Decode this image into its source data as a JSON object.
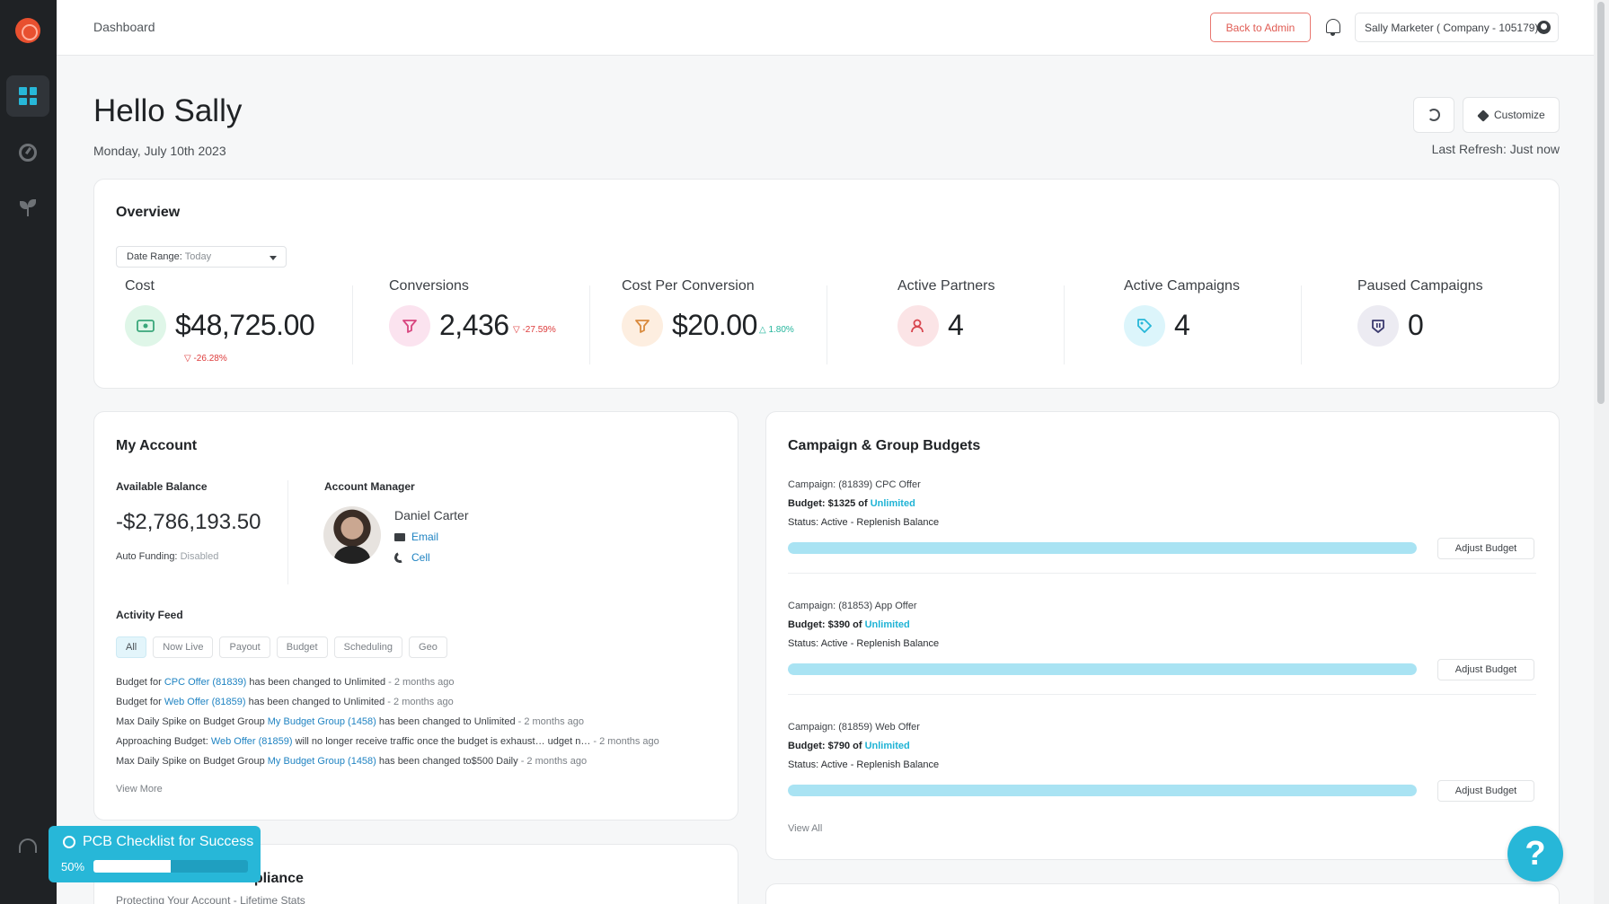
{
  "topbar": {
    "breadcrumb": "Dashboard",
    "back_to_admin": "Back to Admin",
    "user_label": "Sally Marketer ( Company - 105179)"
  },
  "header": {
    "greeting": "Hello Sally",
    "date": "Monday, July 10th 2023",
    "customize": "Customize",
    "last_refresh": "Last Refresh: Just now"
  },
  "overview": {
    "title": "Overview",
    "date_range_label": "Date Range:",
    "date_range_value": "Today",
    "stats": [
      {
        "label": "Cost",
        "value": "$48,725.00",
        "delta": "-26.28%",
        "trend": "down",
        "icon": "cash-icon",
        "icon_color": "#dff6e8"
      },
      {
        "label": "Conversions",
        "value": "2,436",
        "delta": "-27.59%",
        "trend": "down",
        "icon": "funnel-icon",
        "icon_color": "#fbe3ef"
      },
      {
        "label": "Cost Per Conversion",
        "value": "$20.00",
        "delta": "1.80%",
        "trend": "up",
        "icon": "funnel-dollar-icon",
        "icon_color": "#fdeee0"
      },
      {
        "label": "Active Partners",
        "value": "4",
        "icon": "partner-icon",
        "icon_color": "#fbe4e6"
      },
      {
        "label": "Active Campaigns",
        "value": "4",
        "icon": "tag-icon",
        "icon_color": "#dcf5fb"
      },
      {
        "label": "Paused Campaigns",
        "value": "0",
        "icon": "pause-tag-icon",
        "icon_color": "#ecebf2"
      }
    ]
  },
  "account": {
    "title": "My Account",
    "balance_label": "Available Balance",
    "balance": "-$2,786,193.50",
    "auto_funding_label": "Auto Funding:",
    "auto_funding_value": "Disabled",
    "manager_label": "Account Manager",
    "manager_name": "Daniel Carter",
    "email": "Email",
    "cell": "Cell",
    "activity_title": "Activity Feed",
    "filters": [
      "All",
      "Now Live",
      "Payout",
      "Budget",
      "Scheduling",
      "Geo"
    ],
    "feed": [
      {
        "pre": "Budget for ",
        "link": "CPC Offer (81839)",
        "post": " has been changed to  Unlimited",
        "ago": " - 2 months ago"
      },
      {
        "pre": "Budget for ",
        "link": "Web Offer (81859)",
        "post": " has been changed to  Unlimited",
        "ago": " - 2 months ago"
      },
      {
        "pre": "Max Daily Spike on Budget Group ",
        "link": "My Budget Group (1458)",
        "post": " has been changed to  Unlimited",
        "ago": " - 2 months ago"
      },
      {
        "pre": "Approaching Budget: ",
        "link": "Web Offer (81859)",
        "post": " will no longer receive traffic once the budget is exhaust… udget n…",
        "ago": " - 2 months ago"
      },
      {
        "pre": "Max Daily Spike on Budget Group ",
        "link": "My Budget Group (1458)",
        "post": " has been changed to$500 Daily",
        "ago": " - 2 months ago"
      }
    ],
    "view_more": "View More"
  },
  "budgets": {
    "title": "Campaign & Group Budgets",
    "items": [
      {
        "campaign": "Campaign: (81839) CPC Offer",
        "budget_prefix": "Budget: $1325 of ",
        "budget_limit": "Unlimited",
        "status": "Status: Active - Replenish Balance",
        "progress": 1.0,
        "adjust": "Adjust Budget"
      },
      {
        "campaign": "Campaign: (81853) App Offer",
        "budget_prefix": "Budget: $390 of ",
        "budget_limit": "Unlimited",
        "status": "Status: Active - Replenish Balance",
        "progress": 1.0,
        "adjust": "Adjust Budget"
      },
      {
        "campaign": "Campaign: (81859) Web Offer",
        "budget_prefix": "Budget: $790 of ",
        "budget_limit": "Unlimited",
        "status": "Status: Active - Replenish Balance",
        "progress": 1.0,
        "adjust": "Adjust Budget"
      }
    ],
    "view_all": "View All"
  },
  "performance": {
    "title": "Performance & Compliance",
    "subtitle": "Protecting Your Account - Lifetime Stats"
  },
  "checklist": {
    "title": "PCB Checklist for Success",
    "percent": "50%",
    "progress": 0.5
  },
  "help": {
    "label": "?"
  }
}
